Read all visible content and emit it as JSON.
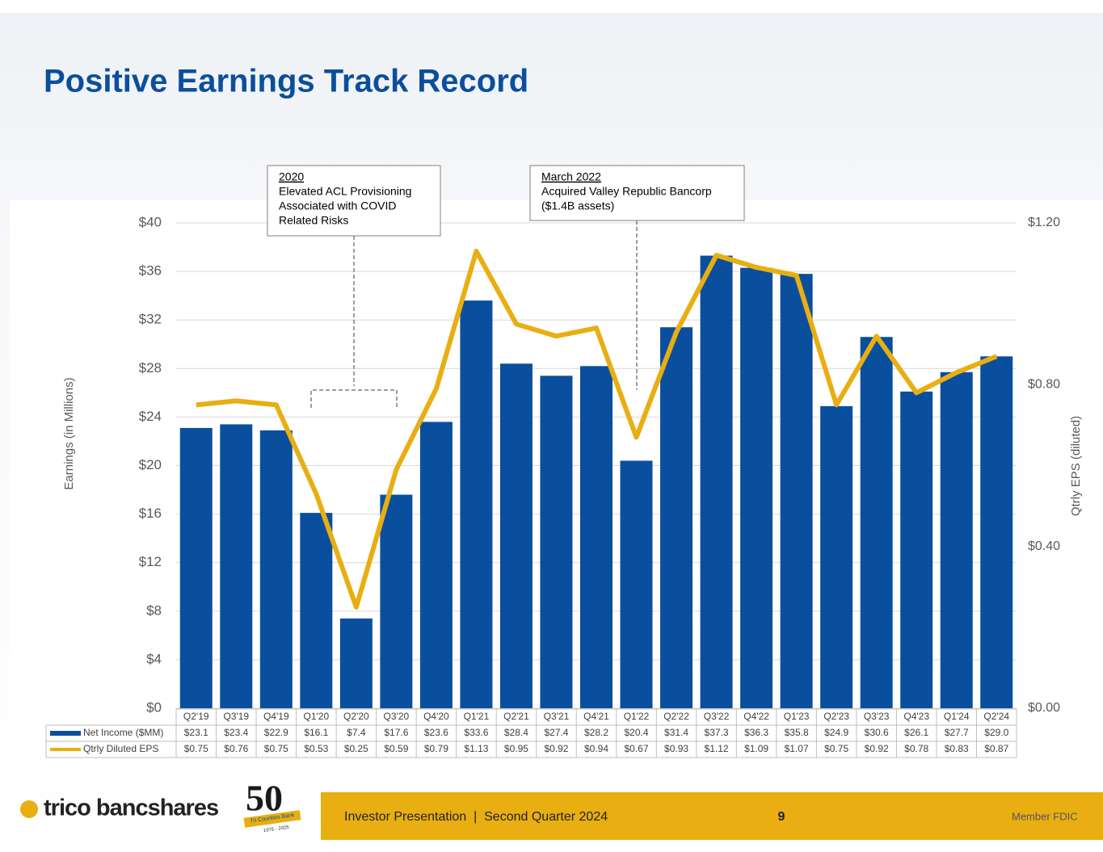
{
  "title": "Positive Earnings Track Record",
  "chart_data": {
    "type": "bar-line",
    "y_label": "Earnings (in Millions)",
    "y2_label": "Qtrly EPS (diluted)",
    "categories": [
      "Q2'19",
      "Q3'19",
      "Q4'19",
      "Q1'20",
      "Q2'20",
      "Q3'20",
      "Q4'20",
      "Q1'21",
      "Q2'21",
      "Q3'21",
      "Q4'21",
      "Q1'22",
      "Q2'22",
      "Q3'22",
      "Q4'22",
      "Q1'23",
      "Q2'23",
      "Q3'23",
      "Q4'23",
      "Q1'24",
      "Q2'24"
    ],
    "series": [
      {
        "name": "Net Income ($MM)",
        "type": "bar",
        "color": "#0a4f9e",
        "values": [
          23.1,
          23.4,
          22.9,
          16.1,
          7.4,
          17.6,
          23.6,
          33.6,
          28.4,
          27.4,
          28.2,
          20.4,
          31.4,
          37.3,
          36.3,
          35.8,
          24.9,
          30.6,
          26.1,
          27.7,
          29.0
        ],
        "value_labels": [
          "$23.1",
          "$23.4",
          "$22.9",
          "$16.1",
          "$7.4",
          "$17.6",
          "$23.6",
          "$33.6",
          "$28.4",
          "$27.4",
          "$28.2",
          "$20.4",
          "$31.4",
          "$37.3",
          "$36.3",
          "$35.8",
          "$24.9",
          "$30.6",
          "$26.1",
          "$27.7",
          "$29.0"
        ]
      },
      {
        "name": "Qtrly Diluted EPS",
        "type": "line",
        "axis": "y2",
        "color": "#e8ae12",
        "values": [
          0.75,
          0.76,
          0.75,
          0.53,
          0.25,
          0.59,
          0.79,
          1.13,
          0.95,
          0.92,
          0.94,
          0.67,
          0.93,
          1.12,
          1.09,
          1.07,
          0.75,
          0.92,
          0.78,
          0.83,
          0.87
        ],
        "value_labels": [
          "$0.75",
          "$0.76",
          "$0.75",
          "$0.53",
          "$0.25",
          "$0.59",
          "$0.79",
          "$1.13",
          "$0.95",
          "$0.92",
          "$0.94",
          "$0.67",
          "$0.93",
          "$1.12",
          "$1.09",
          "$1.07",
          "$0.75",
          "$0.92",
          "$0.78",
          "$0.83",
          "$0.87"
        ]
      }
    ],
    "ylim": [
      0,
      40
    ],
    "yticks": [
      {
        "value": 0,
        "label": "$0"
      },
      {
        "value": 4,
        "label": "$4"
      },
      {
        "value": 8,
        "label": "$8"
      },
      {
        "value": 12,
        "label": "$12"
      },
      {
        "value": 16,
        "label": "$16"
      },
      {
        "value": 20,
        "label": "$20"
      },
      {
        "value": 24,
        "label": "$24"
      },
      {
        "value": 28,
        "label": "$28"
      },
      {
        "value": 32,
        "label": "$32"
      },
      {
        "value": 36,
        "label": "$36"
      },
      {
        "value": 40,
        "label": "$40"
      }
    ],
    "y2lim": [
      0,
      1.2
    ],
    "y2ticks": [
      {
        "value": 0,
        "label": "$0.00"
      },
      {
        "value": 0.4,
        "label": "$0.40"
      },
      {
        "value": 0.8,
        "label": "$0.80"
      },
      {
        "value": 1.2,
        "label": "$1.20"
      }
    ],
    "grid": true,
    "annotations": [
      {
        "heading": "2020",
        "lines": [
          "Elevated ACL Provisioning",
          "Associated with COVID",
          "Related Risks"
        ]
      },
      {
        "heading": "March 2022",
        "lines": [
          "Acquired Valley Republic Bancorp",
          "($1.4B assets)"
        ]
      }
    ]
  },
  "footer": {
    "brand": "trico bancshares",
    "anniversary": "50",
    "badge": "Tri Counties Bank",
    "years": "1975 - 2025",
    "presentation": "Investor Presentation  |  Second Quarter 2024",
    "page": "9",
    "member": "Member FDIC"
  }
}
